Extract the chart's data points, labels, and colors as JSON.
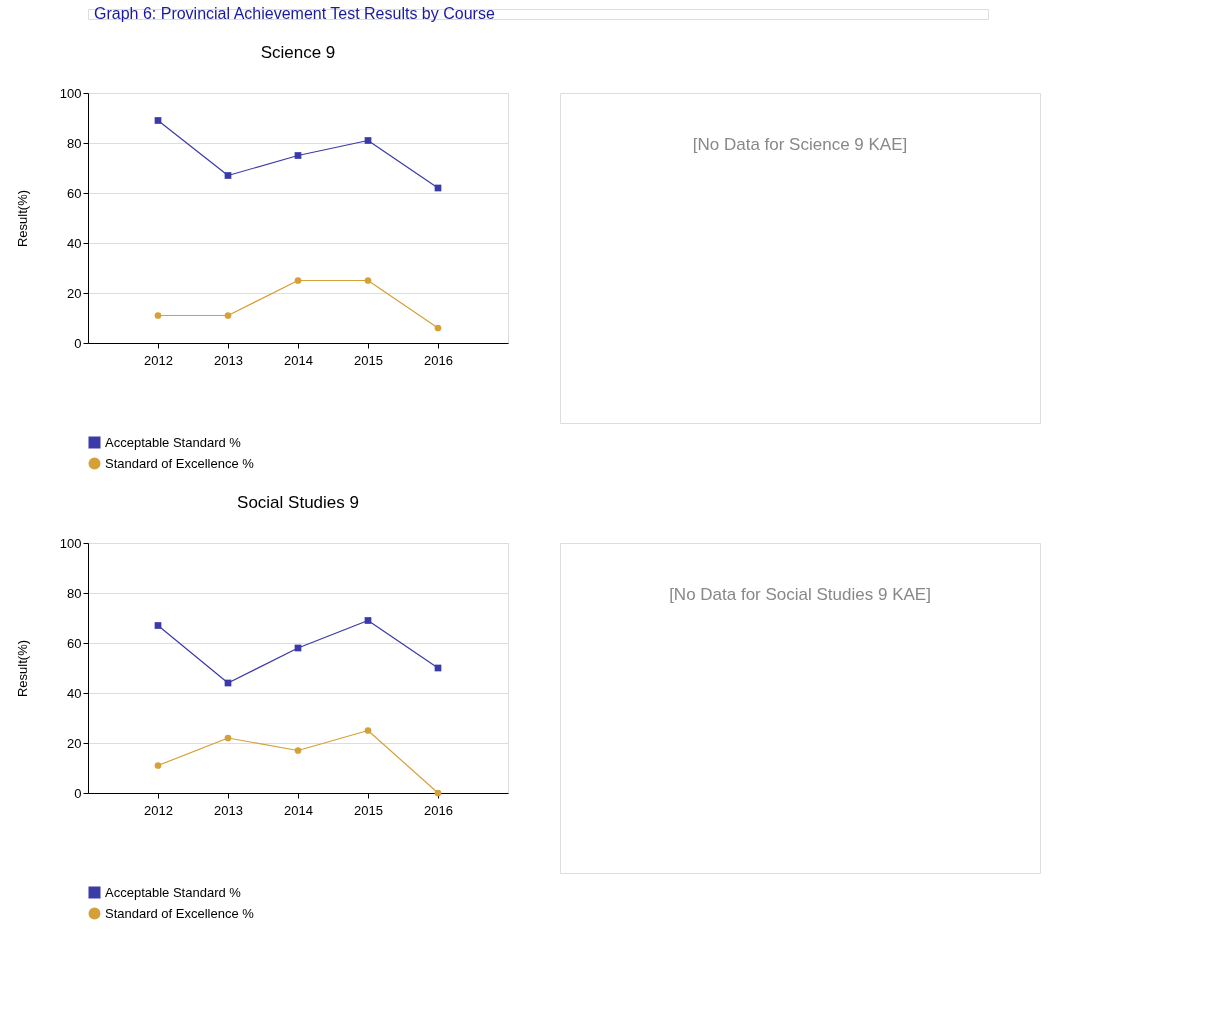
{
  "chart_data": [
    {
      "type": "other",
      "title": "Graph 6: Provincial Achievement Test Results by Course"
    },
    {
      "type": "line",
      "title": "Science 9",
      "ylabel": "Result(%)",
      "categories": [
        "2012",
        "2013",
        "2014",
        "2015",
        "2016"
      ],
      "series": [
        {
          "name": "Acceptable Standard %",
          "color": "#3a3aa8",
          "marker": "square",
          "values": [
            89,
            67,
            75,
            81,
            62
          ]
        },
        {
          "name": "Standard of Excellence %",
          "color": "#d4a037",
          "marker": "circle",
          "values": [
            11,
            11,
            25,
            25,
            6
          ]
        }
      ],
      "ylim": [
        0,
        100
      ],
      "yticks": [
        0,
        20,
        40,
        60,
        80,
        100
      ],
      "grid": "y",
      "legend": "bottom left"
    },
    {
      "type": "other",
      "annotations": [
        "[No Data for Science 9 KAE]"
      ]
    },
    {
      "type": "line",
      "title": "Social Studies 9",
      "ylabel": "Result(%)",
      "categories": [
        "2012",
        "2013",
        "2014",
        "2015",
        "2016"
      ],
      "series": [
        {
          "name": "Acceptable Standard %",
          "color": "#3a3aa8",
          "marker": "square",
          "values": [
            67,
            44,
            58,
            69,
            50
          ]
        },
        {
          "name": "Standard of Excellence %",
          "color": "#d4a037",
          "marker": "circle",
          "values": [
            11,
            22,
            17,
            25,
            0
          ]
        }
      ],
      "ylim": [
        0,
        100
      ],
      "yticks": [
        0,
        20,
        40,
        60,
        80,
        100
      ],
      "grid": "y",
      "legend": "bottom left"
    },
    {
      "type": "other",
      "annotations": [
        "[No Data for Social Studies 9 KAE]"
      ]
    }
  ]
}
